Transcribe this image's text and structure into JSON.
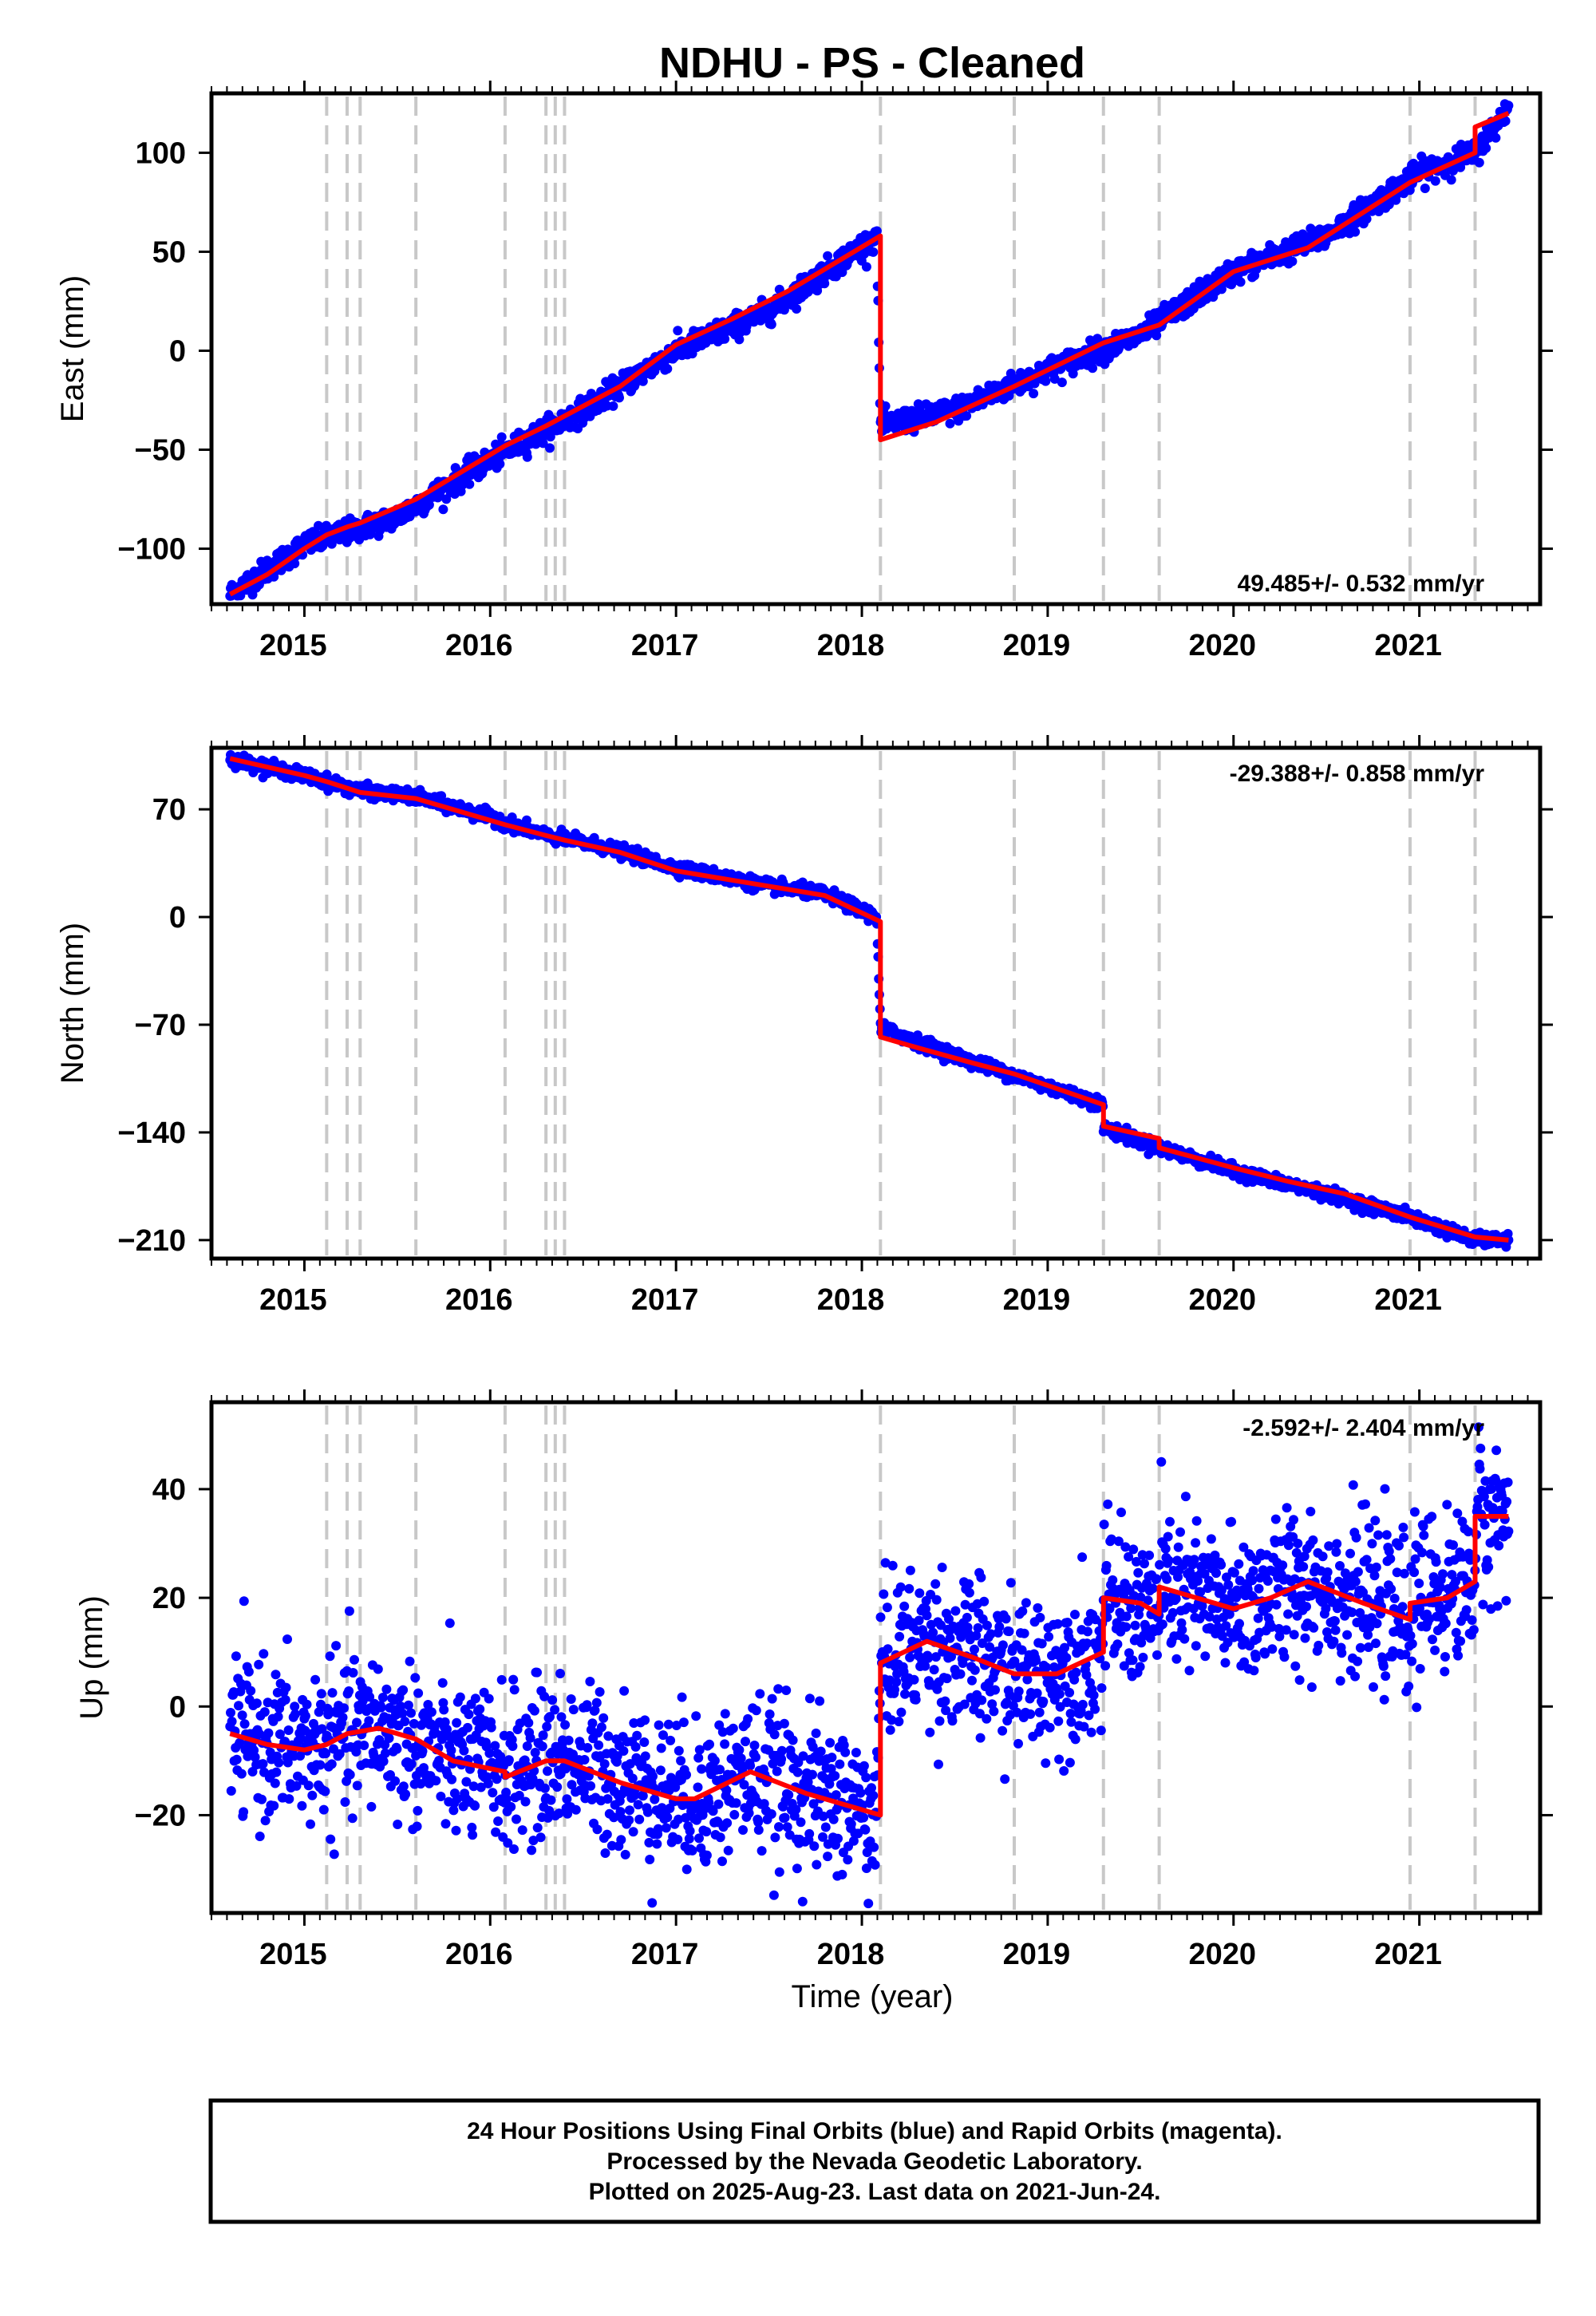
{
  "title": "NDHU  - PS - Cleaned",
  "x_axis_label": "Time (year)",
  "colors": {
    "data": "#0000ff",
    "model": "#ff0000",
    "event": "#c8c8c8",
    "frame": "#000000"
  },
  "footer": {
    "line1": "24 Hour Positions Using Final Orbits (blue) and Rapid Orbits (magenta).",
    "line2": "Processed by the Nevada Geodetic Laboratory.",
    "line3": "Plotted on 2025-Aug-23. Last data on 2021-Jun-24."
  },
  "chart_data": [
    {
      "type": "scatter",
      "ylabel": "East (mm)",
      "xlim": [
        2014.5,
        2021.65
      ],
      "ylim": [
        -128,
        130
      ],
      "x_ticks": [
        2015,
        2016,
        2017,
        2018,
        2019,
        2020,
        2021
      ],
      "x_tick_labels": [
        "2015",
        "2016",
        "2017",
        "2018",
        "2019",
        "2020",
        "2021"
      ],
      "y_ticks": [
        -100,
        -50,
        0,
        50,
        100
      ],
      "y_tick_labels": [
        "−100",
        "−50",
        "0",
        "50",
        "100"
      ],
      "rate_label": "49.485+/- 0.532 mm/yr",
      "rate_position": "bottom-right",
      "event_lines": [
        2015.12,
        2015.23,
        2015.3,
        2015.6,
        2016.08,
        2016.3,
        2016.35,
        2016.4,
        2018.1,
        2018.82,
        2019.3,
        2019.6,
        2020.95,
        2021.3
      ],
      "series": [
        {
          "role": "observations",
          "x_range": [
            2014.6,
            2021.48
          ],
          "approx_curve": [
            [
              2014.6,
              -123
            ],
            [
              2015.0,
              -98
            ],
            [
              2015.5,
              -84
            ],
            [
              2016.0,
              -55
            ],
            [
              2016.5,
              -30
            ],
            [
              2017.0,
              0
            ],
            [
              2017.5,
              20
            ],
            [
              2018.08,
              58
            ],
            [
              2018.1,
              -38
            ],
            [
              2018.5,
              -30
            ],
            [
              2019.0,
              -10
            ],
            [
              2019.5,
              8
            ],
            [
              2020.0,
              40
            ],
            [
              2020.5,
              58
            ],
            [
              2021.0,
              90
            ],
            [
              2021.3,
              100
            ],
            [
              2021.48,
              123
            ]
          ],
          "scatter_mm": 3
        },
        {
          "role": "model",
          "x": [
            2014.6,
            2014.8,
            2015.0,
            2015.12,
            2015.23,
            2015.3,
            2015.6,
            2016.08,
            2016.3,
            2016.4,
            2016.7,
            2017.0,
            2017.3,
            2017.6,
            2018.1,
            2018.1,
            2018.4,
            2018.82,
            2019.3,
            2019.6,
            2020.0,
            2020.4,
            2020.95,
            2021.3,
            2021.3,
            2021.48
          ],
          "y": [
            -123,
            -113,
            -100,
            -93,
            -89,
            -87,
            -75,
            -48,
            -38,
            -33,
            -18,
            3,
            16,
            30,
            58,
            -45,
            -36,
            -18,
            4,
            13,
            40,
            52,
            85,
            100,
            113,
            120
          ]
        }
      ]
    },
    {
      "type": "scatter",
      "ylabel": "North (mm)",
      "xlim": [
        2014.5,
        2021.65
      ],
      "ylim": [
        -222,
        110
      ],
      "x_ticks": [
        2015,
        2016,
        2017,
        2018,
        2019,
        2020,
        2021
      ],
      "x_tick_labels": [
        "2015",
        "2016",
        "2017",
        "2018",
        "2019",
        "2020",
        "2021"
      ],
      "y_ticks": [
        -210,
        -140,
        -70,
        0,
        70
      ],
      "y_tick_labels": [
        "−210",
        "−140",
        "−70",
        "0",
        "70"
      ],
      "rate_label": "-29.388+/- 0.858 mm/yr",
      "rate_position": "top-right",
      "event_lines": [
        2015.12,
        2015.23,
        2015.3,
        2015.6,
        2016.08,
        2016.3,
        2016.35,
        2016.4,
        2018.1,
        2018.82,
        2019.3,
        2019.6,
        2020.95,
        2021.3
      ],
      "series": [
        {
          "role": "observations",
          "x_range": [
            2014.6,
            2021.48
          ],
          "approx_curve": [
            [
              2014.6,
              103
            ],
            [
              2015.0,
              92
            ],
            [
              2015.3,
              82
            ],
            [
              2015.6,
              78
            ],
            [
              2016.0,
              65
            ],
            [
              2016.3,
              53
            ],
            [
              2016.6,
              46
            ],
            [
              2017.0,
              32
            ],
            [
              2017.5,
              20
            ],
            [
              2017.8,
              15
            ],
            [
              2018.08,
              0
            ],
            [
              2018.1,
              -72
            ],
            [
              2018.5,
              -90
            ],
            [
              2018.82,
              -103
            ],
            [
              2019.3,
              -122
            ],
            [
              2019.3,
              -137
            ],
            [
              2019.6,
              -150
            ],
            [
              2020.0,
              -165
            ],
            [
              2020.5,
              -180
            ],
            [
              2020.95,
              -195
            ],
            [
              2021.3,
              -210
            ],
            [
              2021.48,
              -210
            ]
          ],
          "scatter_mm": 2
        },
        {
          "role": "model",
          "x": [
            2014.6,
            2015.0,
            2015.12,
            2015.3,
            2015.6,
            2016.08,
            2016.3,
            2016.4,
            2016.7,
            2017.0,
            2017.3,
            2017.6,
            2017.8,
            2018.1,
            2018.1,
            2018.3,
            2018.6,
            2018.82,
            2019.3,
            2019.3,
            2019.6,
            2019.6,
            2020.0,
            2020.3,
            2020.6,
            2020.95,
            2021.3,
            2021.48
          ],
          "y": [
            103,
            92,
            88,
            81,
            77,
            60,
            53,
            50,
            42,
            30,
            24,
            18,
            14,
            -3,
            -78,
            -85,
            -95,
            -102,
            -122,
            -136,
            -144,
            -150,
            -163,
            -172,
            -180,
            -195,
            -208,
            -210
          ]
        }
      ]
    },
    {
      "type": "scatter",
      "ylabel": "Up (mm)",
      "xlim": [
        2014.5,
        2021.65
      ],
      "ylim": [
        -38,
        56
      ],
      "x_ticks": [
        2015,
        2016,
        2017,
        2018,
        2019,
        2020,
        2021
      ],
      "x_tick_labels": [
        "2015",
        "2016",
        "2017",
        "2018",
        "2019",
        "2020",
        "2021"
      ],
      "y_ticks": [
        -20,
        0,
        20,
        40
      ],
      "y_tick_labels": [
        "−20",
        "0",
        "20",
        "40"
      ],
      "rate_label": "-2.592+/- 2.404 mm/yr",
      "rate_position": "top-right",
      "event_lines": [
        2015.12,
        2015.23,
        2015.3,
        2015.6,
        2016.08,
        2016.3,
        2016.35,
        2016.4,
        2018.1,
        2018.82,
        2019.3,
        2019.6,
        2020.95,
        2021.3
      ],
      "series": [
        {
          "role": "observations",
          "x_range": [
            2014.6,
            2021.48
          ],
          "approx_curve": [
            [
              2014.6,
              -5
            ],
            [
              2015.0,
              -8
            ],
            [
              2015.4,
              -4
            ],
            [
              2015.8,
              -10
            ],
            [
              2016.1,
              -12
            ],
            [
              2016.4,
              -9
            ],
            [
              2016.9,
              -15
            ],
            [
              2017.1,
              -17
            ],
            [
              2017.4,
              -12
            ],
            [
              2018.08,
              -20
            ],
            [
              2018.1,
              8
            ],
            [
              2018.35,
              12
            ],
            [
              2018.82,
              6
            ],
            [
              2019.0,
              6
            ],
            [
              2019.3,
              10
            ],
            [
              2019.3,
              19
            ],
            [
              2019.6,
              17
            ],
            [
              2019.6,
              22
            ],
            [
              2020.0,
              18
            ],
            [
              2020.4,
              23
            ],
            [
              2020.95,
              16
            ],
            [
              2020.95,
              19
            ],
            [
              2021.3,
              23
            ],
            [
              2021.3,
              35
            ],
            [
              2021.48,
              35
            ]
          ],
          "scatter_mm": 7
        },
        {
          "role": "model",
          "x": [
            2014.6,
            2014.8,
            2015.0,
            2015.12,
            2015.23,
            2015.4,
            2015.6,
            2015.8,
            2016.08,
            2016.08,
            2016.3,
            2016.4,
            2016.7,
            2017.0,
            2017.1,
            2017.4,
            2017.7,
            2018.1,
            2018.1,
            2018.35,
            2018.6,
            2018.82,
            2019.05,
            2019.3,
            2019.3,
            2019.5,
            2019.6,
            2019.6,
            2019.8,
            2020.0,
            2020.2,
            2020.4,
            2020.7,
            2020.95,
            2020.95,
            2021.15,
            2021.3,
            2021.3,
            2021.48
          ],
          "y": [
            -5,
            -7,
            -8,
            -7,
            -5,
            -4,
            -6,
            -10,
            -12,
            -13,
            -10,
            -10,
            -14,
            -17,
            -17,
            -12,
            -16,
            -20,
            8,
            12,
            9,
            6,
            6,
            10,
            20,
            19,
            17,
            22,
            20,
            18,
            20,
            23,
            19,
            16,
            19,
            20,
            23,
            35,
            35
          ]
        }
      ]
    }
  ]
}
